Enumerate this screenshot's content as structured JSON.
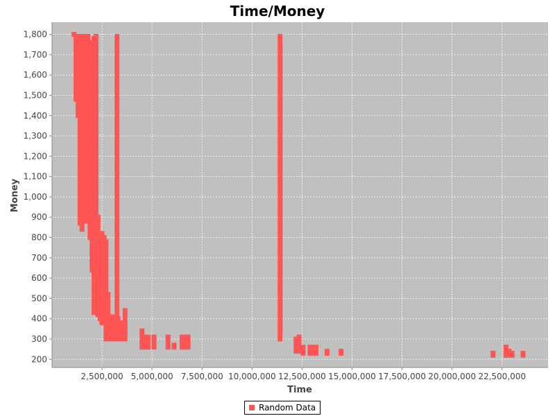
{
  "chart_data": {
    "type": "scatter",
    "title": "Time/Money",
    "xlabel": "Time",
    "ylabel": "Money",
    "xlim": [
      0,
      24800000
    ],
    "ylim": [
      160,
      1860
    ],
    "x_ticks": [
      2500000,
      5000000,
      7500000,
      10000000,
      12500000,
      15000000,
      17500000,
      20000000,
      22500000
    ],
    "x_tick_labels": [
      "2,500,000",
      "5,000,000",
      "7,500,000",
      "10,000,000",
      "12,500,000",
      "15,000,000",
      "17,500,000",
      "20,000,000",
      "22,500,000"
    ],
    "y_ticks": [
      200,
      300,
      400,
      500,
      600,
      700,
      800,
      900,
      1000,
      1100,
      1200,
      1300,
      1400,
      1500,
      1600,
      1700,
      1800
    ],
    "y_tick_labels": [
      "200",
      "300",
      "400",
      "500",
      "600",
      "700",
      "800",
      "900",
      "1,000",
      "1,100",
      "1,200",
      "1,300",
      "1,400",
      "1,500",
      "1,600",
      "1,700",
      "1,800"
    ],
    "grid": true,
    "legend_position": "bottom-center",
    "colors": {
      "series": "#ff5555",
      "plot_background": "#c0c0c0",
      "grid": "#ffffff"
    },
    "series": [
      {
        "name": "Random Data",
        "ranges": [
          [
            1100000,
            1800,
            1800
          ],
          [
            1200000,
            1480,
            1790
          ],
          [
            1300000,
            1400,
            1770
          ],
          [
            1400000,
            870,
            1790
          ],
          [
            1500000,
            840,
            1780
          ],
          [
            1600000,
            900,
            1790
          ],
          [
            1700000,
            880,
            1780
          ],
          [
            1800000,
            920,
            1790
          ],
          [
            1900000,
            800,
            1760
          ],
          [
            2000000,
            640,
            1700
          ],
          [
            2100000,
            430,
            1780
          ],
          [
            2150000,
            500,
            1650
          ],
          [
            2200000,
            440,
            1790
          ],
          [
            2300000,
            420,
            900
          ],
          [
            2400000,
            400,
            620
          ],
          [
            2500000,
            380,
            820
          ],
          [
            2600000,
            390,
            800
          ],
          [
            2700000,
            300,
            780
          ],
          [
            2800000,
            300,
            520
          ],
          [
            3000000,
            300,
            410
          ],
          [
            3100000,
            300,
            400
          ],
          [
            3250000,
            300,
            1790
          ],
          [
            3300000,
            300,
            400
          ],
          [
            3500000,
            300,
            380
          ],
          [
            3650000,
            300,
            440
          ],
          [
            4500000,
            260,
            340
          ],
          [
            4650000,
            260,
            310
          ],
          [
            4800000,
            260,
            310
          ],
          [
            5100000,
            260,
            310
          ],
          [
            5800000,
            260,
            310
          ],
          [
            6100000,
            260,
            270
          ],
          [
            6500000,
            260,
            310
          ],
          [
            6650000,
            260,
            310
          ],
          [
            6800000,
            260,
            310
          ],
          [
            11400000,
            300,
            1790
          ],
          [
            12200000,
            240,
            300
          ],
          [
            12350000,
            240,
            310
          ],
          [
            12550000,
            230,
            260
          ],
          [
            12900000,
            230,
            260
          ],
          [
            13100000,
            230,
            260
          ],
          [
            13200000,
            230,
            260
          ],
          [
            13750000,
            230,
            240
          ],
          [
            14450000,
            230,
            240
          ],
          [
            22050000,
            220,
            230
          ],
          [
            22700000,
            220,
            260
          ],
          [
            22850000,
            220,
            240
          ],
          [
            23000000,
            220,
            230
          ],
          [
            23550000,
            220,
            230
          ]
        ]
      }
    ]
  },
  "legend": {
    "label": "Random Data"
  }
}
